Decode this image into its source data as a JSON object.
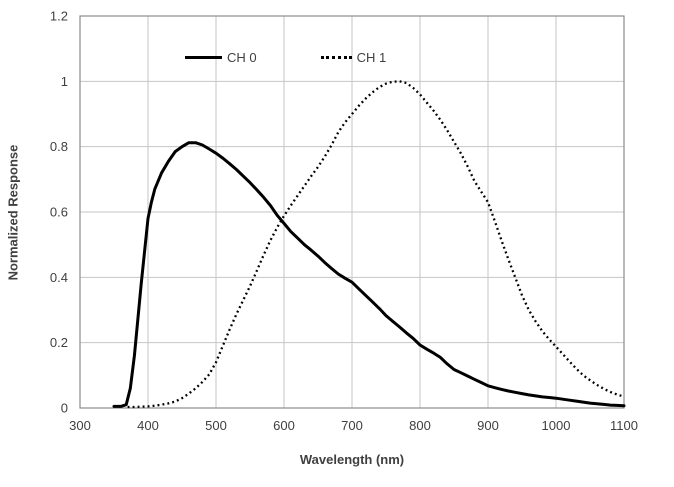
{
  "chart_data": {
    "type": "line",
    "title": "",
    "xlabel": "Wavelength (nm)",
    "ylabel": "Normalized Response",
    "xlim": [
      300,
      1100
    ],
    "ylim": [
      0,
      1.2
    ],
    "xticks": [
      300,
      400,
      500,
      600,
      700,
      800,
      900,
      1000,
      1100
    ],
    "xticklabels": [
      "300",
      "400",
      "500",
      "600",
      "700",
      "800",
      "900",
      "1000",
      "1100"
    ],
    "yticks": [
      0,
      0.2,
      0.4,
      0.6,
      0.8,
      1.0,
      1.2
    ],
    "yticklabels": [
      "0",
      "0.2",
      "0.4",
      "0.6",
      "0.8",
      "1",
      "1.2"
    ],
    "grid": true,
    "colors": {
      "line": "#000000",
      "grid": "#c6c6c6",
      "border": "#8c8c8c",
      "text": "#404040",
      "background": "#ffffff"
    },
    "legend": {
      "position": "top-inside",
      "entries": [
        {
          "label": "CH 0",
          "style": "solid"
        },
        {
          "label": "CH 1",
          "style": "dotted"
        }
      ]
    },
    "series": [
      {
        "name": "CH 0",
        "style": "solid",
        "points": [
          [
            350,
            0.005
          ],
          [
            360,
            0.005
          ],
          [
            368,
            0.01
          ],
          [
            374,
            0.06
          ],
          [
            380,
            0.16
          ],
          [
            385,
            0.27
          ],
          [
            390,
            0.38
          ],
          [
            395,
            0.48
          ],
          [
            400,
            0.58
          ],
          [
            405,
            0.63
          ],
          [
            410,
            0.67
          ],
          [
            420,
            0.72
          ],
          [
            430,
            0.755
          ],
          [
            440,
            0.785
          ],
          [
            450,
            0.8
          ],
          [
            460,
            0.812
          ],
          [
            470,
            0.812
          ],
          [
            480,
            0.805
          ],
          [
            490,
            0.793
          ],
          [
            500,
            0.78
          ],
          [
            510,
            0.765
          ],
          [
            520,
            0.748
          ],
          [
            530,
            0.73
          ],
          [
            540,
            0.71
          ],
          [
            550,
            0.69
          ],
          [
            560,
            0.668
          ],
          [
            570,
            0.645
          ],
          [
            580,
            0.62
          ],
          [
            590,
            0.59
          ],
          [
            600,
            0.565
          ],
          [
            610,
            0.54
          ],
          [
            620,
            0.52
          ],
          [
            630,
            0.5
          ],
          [
            640,
            0.483
          ],
          [
            650,
            0.465
          ],
          [
            660,
            0.445
          ],
          [
            670,
            0.427
          ],
          [
            680,
            0.41
          ],
          [
            690,
            0.397
          ],
          [
            700,
            0.385
          ],
          [
            710,
            0.365
          ],
          [
            720,
            0.345
          ],
          [
            730,
            0.325
          ],
          [
            740,
            0.305
          ],
          [
            750,
            0.283
          ],
          [
            760,
            0.265
          ],
          [
            770,
            0.248
          ],
          [
            780,
            0.23
          ],
          [
            790,
            0.213
          ],
          [
            800,
            0.193
          ],
          [
            810,
            0.18
          ],
          [
            820,
            0.168
          ],
          [
            830,
            0.155
          ],
          [
            840,
            0.135
          ],
          [
            850,
            0.118
          ],
          [
            860,
            0.108
          ],
          [
            870,
            0.098
          ],
          [
            880,
            0.088
          ],
          [
            890,
            0.078
          ],
          [
            900,
            0.068
          ],
          [
            910,
            0.062
          ],
          [
            920,
            0.057
          ],
          [
            930,
            0.052
          ],
          [
            940,
            0.048
          ],
          [
            950,
            0.044
          ],
          [
            960,
            0.04
          ],
          [
            970,
            0.037
          ],
          [
            980,
            0.034
          ],
          [
            990,
            0.032
          ],
          [
            1000,
            0.03
          ],
          [
            1010,
            0.027
          ],
          [
            1020,
            0.024
          ],
          [
            1030,
            0.021
          ],
          [
            1040,
            0.018
          ],
          [
            1050,
            0.015
          ],
          [
            1060,
            0.013
          ],
          [
            1070,
            0.011
          ],
          [
            1080,
            0.009
          ],
          [
            1090,
            0.008
          ],
          [
            1100,
            0.007
          ]
        ]
      },
      {
        "name": "CH 1",
        "style": "dotted",
        "points": [
          [
            370,
            0.003
          ],
          [
            380,
            0.003
          ],
          [
            390,
            0.004
          ],
          [
            400,
            0.005
          ],
          [
            410,
            0.007
          ],
          [
            420,
            0.01
          ],
          [
            430,
            0.014
          ],
          [
            440,
            0.02
          ],
          [
            450,
            0.03
          ],
          [
            460,
            0.044
          ],
          [
            470,
            0.06
          ],
          [
            480,
            0.08
          ],
          [
            490,
            0.103
          ],
          [
            500,
            0.14
          ],
          [
            510,
            0.19
          ],
          [
            520,
            0.24
          ],
          [
            530,
            0.287
          ],
          [
            540,
            0.33
          ],
          [
            550,
            0.373
          ],
          [
            560,
            0.42
          ],
          [
            570,
            0.468
          ],
          [
            580,
            0.513
          ],
          [
            590,
            0.553
          ],
          [
            600,
            0.588
          ],
          [
            610,
            0.62
          ],
          [
            620,
            0.65
          ],
          [
            630,
            0.68
          ],
          [
            640,
            0.71
          ],
          [
            650,
            0.738
          ],
          [
            660,
            0.77
          ],
          [
            670,
            0.805
          ],
          [
            680,
            0.845
          ],
          [
            690,
            0.875
          ],
          [
            700,
            0.9
          ],
          [
            710,
            0.925
          ],
          [
            720,
            0.947
          ],
          [
            730,
            0.966
          ],
          [
            740,
            0.982
          ],
          [
            750,
            0.993
          ],
          [
            760,
            0.999
          ],
          [
            770,
            1.0
          ],
          [
            780,
            0.995
          ],
          [
            790,
            0.98
          ],
          [
            800,
            0.96
          ],
          [
            810,
            0.935
          ],
          [
            820,
            0.91
          ],
          [
            830,
            0.882
          ],
          [
            840,
            0.85
          ],
          [
            850,
            0.815
          ],
          [
            860,
            0.78
          ],
          [
            870,
            0.74
          ],
          [
            880,
            0.695
          ],
          [
            890,
            0.662
          ],
          [
            900,
            0.63
          ],
          [
            910,
            0.572
          ],
          [
            920,
            0.512
          ],
          [
            930,
            0.455
          ],
          [
            940,
            0.4
          ],
          [
            950,
            0.345
          ],
          [
            960,
            0.3
          ],
          [
            970,
            0.265
          ],
          [
            980,
            0.235
          ],
          [
            990,
            0.21
          ],
          [
            1000,
            0.188
          ],
          [
            1010,
            0.165
          ],
          [
            1020,
            0.142
          ],
          [
            1030,
            0.12
          ],
          [
            1040,
            0.1
          ],
          [
            1050,
            0.085
          ],
          [
            1060,
            0.071
          ],
          [
            1070,
            0.059
          ],
          [
            1080,
            0.049
          ],
          [
            1090,
            0.041
          ],
          [
            1100,
            0.035
          ]
        ]
      }
    ]
  }
}
